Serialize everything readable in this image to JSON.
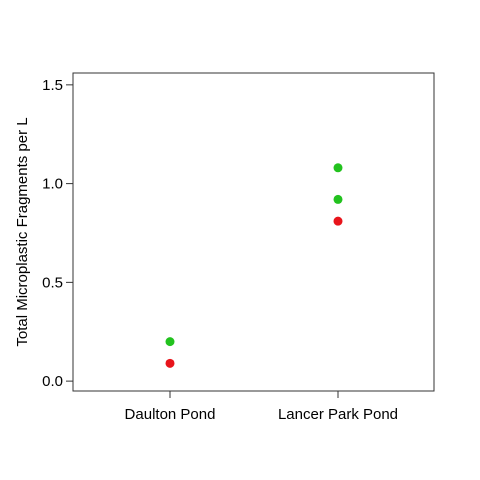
{
  "chart_data": {
    "type": "scatter",
    "title": "",
    "xlabel": "",
    "ylabel": "Total Microplastic Fragments per L",
    "categories": [
      "Daulton Pond",
      "Lancer Park Pond"
    ],
    "ylim": [
      -0.05,
      1.56
    ],
    "yticks": [
      "0.0",
      "0.5",
      "1.0",
      "1.5"
    ],
    "grid": false,
    "legend": "none",
    "points": [
      {
        "category": "Daulton Pond",
        "y": 0.2,
        "color": "#22c21e"
      },
      {
        "category": "Daulton Pond",
        "y": 0.09,
        "color": "#e8141b"
      },
      {
        "category": "Lancer Park Pond",
        "y": 1.08,
        "color": "#22c21e"
      },
      {
        "category": "Lancer Park Pond",
        "y": 0.92,
        "color": "#22c21e"
      },
      {
        "category": "Lancer Park Pond",
        "y": 0.81,
        "color": "#e8141b"
      }
    ]
  }
}
